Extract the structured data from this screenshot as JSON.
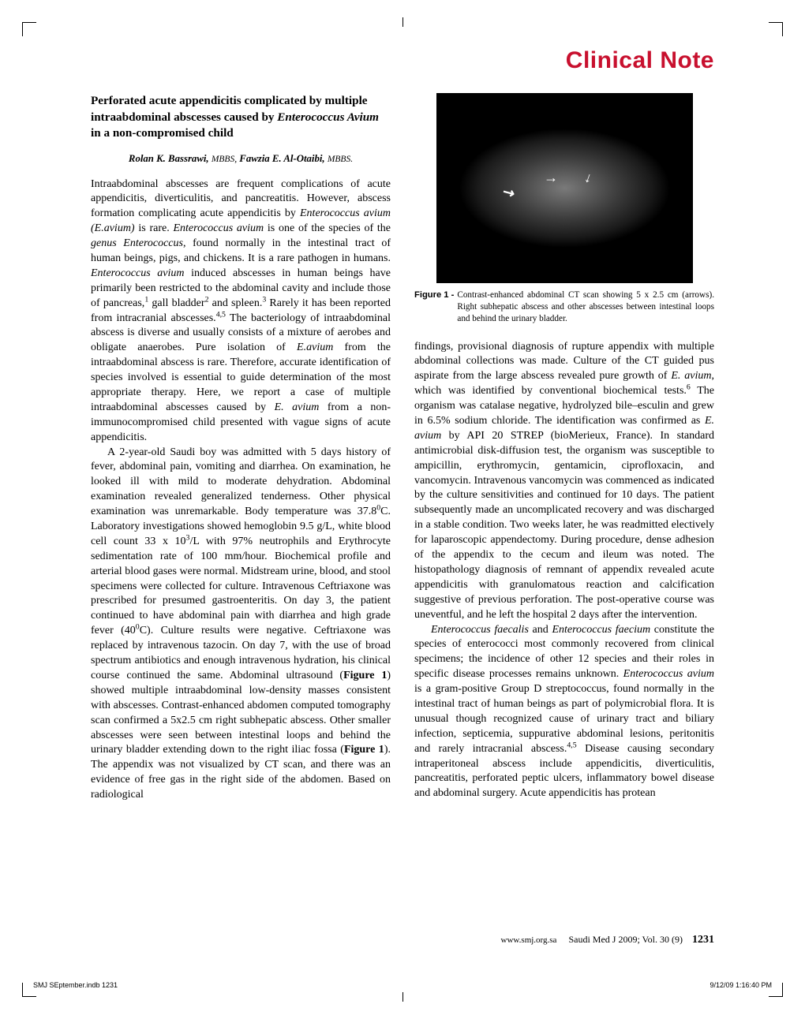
{
  "section_heading": "Clinical Note",
  "section_color": "#c8102e",
  "article": {
    "title_plain_a": "Perforated acute appendicitis complicated by multiple intraabdominal abscesses caused by ",
    "title_ital": "Enterococcus Avium",
    "title_plain_b": " in a non-compromised child",
    "authors_line": "Rolan K. Bassrawi, MBBS, Fawzia E. Al-Otaibi, MBBS."
  },
  "left_column": {
    "para1_html": "Intraabdominal abscesses are frequent complications of acute appendicitis, diverticulitis, and pancreatitis. However, abscess formation complicating acute appendicitis by <span class=\"ital\">Enterococcus avium (E.avium)</span> is rare. <span class=\"ital\">Enterococcus avium</span> is one of the species of the <span class=\"ital\">genus Enterococcus</span>, found normally in the intestinal tract of human beings, pigs, and chickens. It is a rare pathogen in humans. <span class=\"ital\">Enterococcus avium</span> induced abscesses in human beings have primarily been restricted to the abdominal cavity and include those of pancreas,<sup>1</sup> gall bladder<sup>2</sup> and spleen.<sup>3</sup> Rarely it has been reported from intracranial abscesses.<sup>4,5</sup> The bacteriology of intraabdominal abscess is diverse and usually consists of a mixture of aerobes and obligate anaerobes. Pure isolation of <span class=\"ital\">E.avium</span> from the intraabdominal abscess is rare. Therefore, accurate identification of species involved is essential to guide determination of the most appropriate therapy. Here, we report a case of multiple intraabdominal abscesses caused by <span class=\"ital\">E. avium</span> from a non-immunocompromised child presented with vague signs of acute appendicitis.",
    "para2_html": "A 2-year-old Saudi boy was admitted with 5 days history of fever, abdominal pain, vomiting and diarrhea. On examination, he looked ill with mild to moderate dehydration. Abdominal examination revealed generalized tenderness. Other physical examination was unremarkable. Body temperature was 37.8<sup>0</sup>C. Laboratory investigations showed hemoglobin 9.5 g/L, white blood cell count 33 x 10<sup>3</sup>/L with 97% neutrophils and Erythrocyte sedimentation rate of 100 mm/hour. Biochemical profile and arterial blood gases were normal. Midstream urine, blood, and stool specimens were collected for culture. Intravenous Ceftriaxone was prescribed for presumed gastroenteritis. On day 3, the patient continued to have abdominal pain with diarrhea and high grade fever (40<sup>0</sup>C). Culture results were negative. Ceftriaxone was replaced by intravenous tazocin. On day 7, with the use of broad spectrum antibiotics and enough intravenous hydration, his clinical course continued the same. Abdominal ultrasound (<span class=\"bold\">Figure 1</span>) showed multiple intraabdominal low-density masses consistent with abscesses. Contrast-enhanced abdomen computed tomography scan confirmed a 5x2.5 cm right subhepatic abscess. Other smaller abscesses were seen between intestinal loops and behind the urinary bladder extending down to the right iliac fossa (<span class=\"bold\">Figure 1</span>). The appendix was not visualized by CT scan, and there was an evidence of free gas in the right side of the abdomen. Based on radiological"
  },
  "figure": {
    "label": "Figure 1 - ",
    "caption": "Contrast-enhanced abdominal CT scan showing 5 x 2.5 cm (arrows). Right subhepatic abscess and other abscesses between intestinal loops and behind the urinary bladder."
  },
  "right_column": {
    "para1_html": "findings, provisional diagnosis of rupture appendix with multiple abdominal collections was made. Culture of the CT guided pus aspirate from the large abscess revealed pure growth of <span class=\"ital\">E. avium</span>, which was identified by conventional biochemical tests.<sup>6</sup> The organism was catalase negative, hydrolyzed bile–esculin and grew in 6.5% sodium chloride. The identification was confirmed as <span class=\"ital\">E. avium</span> by API 20 STREP (bioMerieux, France). In standard antimicrobial disk-diffusion test, the organism was susceptible to ampicillin, erythromycin, gentamicin, ciprofloxacin, and vancomycin. Intravenous vancomycin was commenced as indicated by the culture sensitivities and continued for 10 days. The patient subsequently made an uncomplicated recovery and was discharged in a stable condition. Two weeks later, he was readmitted electively for laparoscopic appendectomy. During procedure, dense adhesion of the appendix to the cecum and ileum was noted. The histopathology diagnosis of remnant of appendix revealed acute appendicitis with granulomatous reaction and calcification suggestive of previous perforation. The post-operative course was uneventful, and he left the hospital 2 days after the intervention.",
    "para2_html": "<span class=\"ital\">Enterococcus faecalis</span> and <span class=\"ital\">Enterococcus faecium</span> constitute the species of enterococci most commonly recovered from clinical specimens; the incidence of other 12 species and their roles in specific disease processes remains unknown. <span class=\"ital\">Enterococcus avium</span> is a gram-positive Group D streptococcus, found normally in the intestinal tract of human beings as part of polymicrobial flora. It is unusual though recognized cause of urinary tract and biliary infection, septicemia, suppurative abdominal lesions, peritonitis and rarely intracranial abscess.<sup>4,5</sup> Disease causing secondary intraperitoneal abscess include appendicitis, diverticulitis, pancreatitis, perforated peptic ulcers, inflammatory bowel disease and abdominal surgery. Acute appendicitis has protean"
  },
  "footer": {
    "site": "www.smj.org.sa",
    "journal": "Saudi Med J 2009; Vol. 30 (9)",
    "page_number": "1231"
  },
  "print_footer": {
    "left": "SMJ SEptember.indb   1231",
    "right": "9/12/09   1:16:40 PM"
  }
}
